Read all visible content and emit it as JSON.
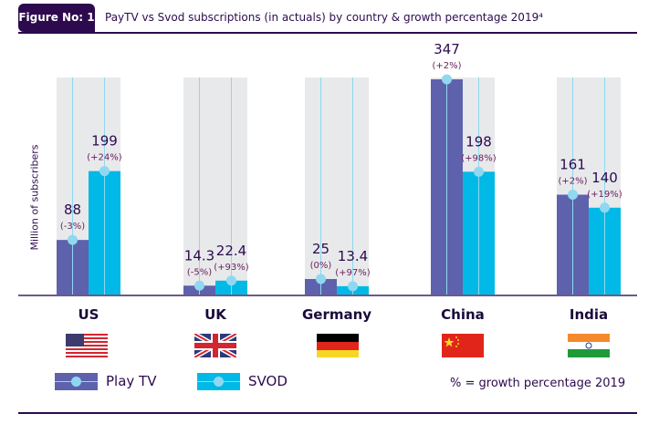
{
  "header": {
    "tag": "Figure No: 1",
    "title": "PayTV vs Svod subscriptions (in actuals) by country & growth percentage 2019⁴"
  },
  "chart_data": {
    "type": "bar",
    "ylabel": "Million of subscribers",
    "categories": [
      "US",
      "UK",
      "Germany",
      "China",
      "India"
    ],
    "series": [
      {
        "name": "Play TV",
        "color": "#5e62ac",
        "values": [
          88,
          14.3,
          25,
          347,
          161
        ],
        "labels": [
          "88",
          "14.3",
          "25",
          "347",
          "161"
        ],
        "growth": [
          "(-3%)",
          "(-5%)",
          "(0%)",
          "(+2%)",
          "(+2%)"
        ]
      },
      {
        "name": "SVOD",
        "color": "#00b9e6",
        "values": [
          199,
          22.4,
          13.4,
          198,
          140
        ],
        "labels": [
          "199",
          "22.4",
          "13.4",
          "198",
          "140"
        ],
        "growth": [
          "(+24%)",
          "(+93%)",
          "(+97%)",
          "(+98%)",
          "(+19%)"
        ]
      }
    ],
    "legend": "bottom-left",
    "note": "% = growth percentage 2019"
  },
  "flags": [
    "us-flag",
    "uk-flag",
    "germany-flag",
    "china-flag",
    "india-flag"
  ]
}
